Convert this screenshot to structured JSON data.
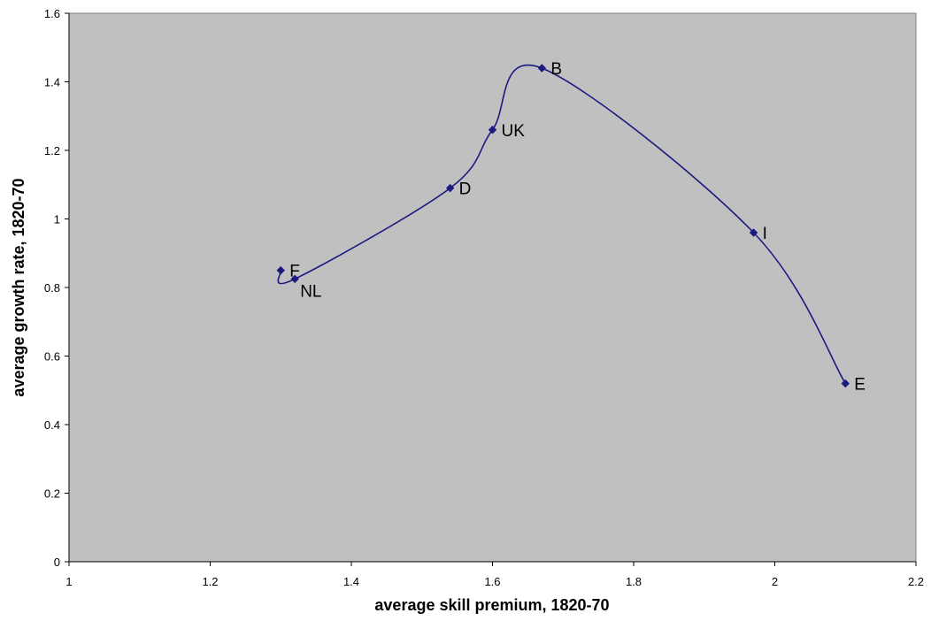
{
  "chart_data": {
    "type": "scatter",
    "xlabel": "average skill premium, 1820-70",
    "ylabel": "average growth rate, 1820-70",
    "xlim": [
      1,
      2.2
    ],
    "ylim": [
      0,
      1.6
    ],
    "x_ticks": [
      "1",
      "1.2",
      "1.4",
      "1.6",
      "1.8",
      "2",
      "2.2"
    ],
    "y_ticks": [
      "0",
      "0.2",
      "0.4",
      "0.6",
      "0.8",
      "1",
      "1.2",
      "1.4",
      "1.6"
    ],
    "grid": false,
    "connected_smooth_line": true,
    "line_color": "#1a1a80",
    "marker_color": "#1a1a80",
    "plot_background": "#c0c0c0",
    "points": [
      {
        "label": "F",
        "x": 1.3,
        "y": 0.85
      },
      {
        "label": "NL",
        "x": 1.32,
        "y": 0.825
      },
      {
        "label": "D",
        "x": 1.54,
        "y": 1.09
      },
      {
        "label": "UK",
        "x": 1.6,
        "y": 1.26
      },
      {
        "label": "B",
        "x": 1.67,
        "y": 1.44
      },
      {
        "label": "I",
        "x": 1.97,
        "y": 0.96
      },
      {
        "label": "E",
        "x": 2.1,
        "y": 0.52
      }
    ]
  }
}
